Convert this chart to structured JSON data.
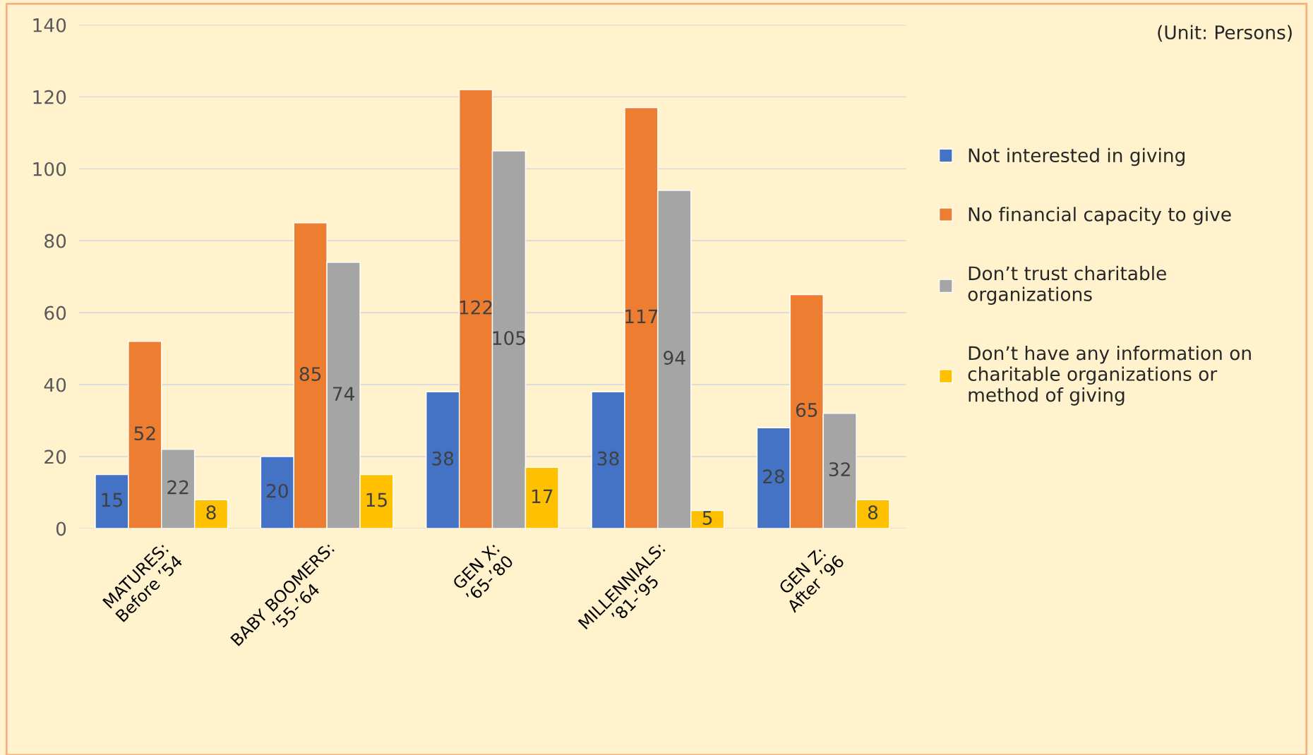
{
  "chart_data": {
    "type": "bar",
    "categories": [
      "MATURES:\nBefore ’54",
      "BABY BOOMERS:\n’55-’64",
      "GEN X:\n’65-’80",
      "MILLENNIALS:\n’81-’95",
      "GEN Z:\nAfter ’96"
    ],
    "series": [
      {
        "name": "Not interested in giving",
        "color": "#4472c4",
        "values": [
          15,
          20,
          38,
          38,
          28
        ]
      },
      {
        "name": "No financial capacity to give",
        "color": "#ed7d31",
        "values": [
          52,
          85,
          122,
          117,
          65
        ]
      },
      {
        "name": "Don’t trust charitable\norganizations",
        "color": "#a5a5a5",
        "values": [
          22,
          74,
          105,
          94,
          32
        ]
      },
      {
        "name": "Don’t have any information on\ncharitable organizations or\nmethod of giving",
        "color": "#ffc000",
        "values": [
          8,
          15,
          17,
          5,
          8
        ]
      }
    ],
    "ylim": [
      0,
      140
    ],
    "yticks": [
      0,
      20,
      40,
      60,
      80,
      100,
      120,
      140
    ],
    "grid": "y",
    "legend": "right",
    "data_labels": true,
    "annotations": [
      "(Unit: Persons)"
    ]
  }
}
